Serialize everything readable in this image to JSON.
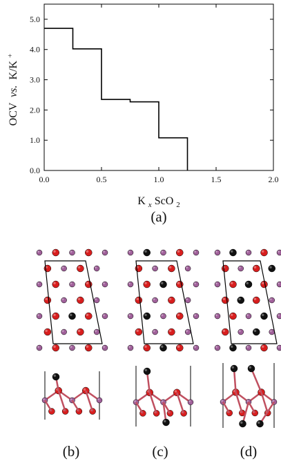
{
  "chart_data": {
    "type": "line",
    "step": true,
    "x": [
      0.0,
      0.25,
      0.5,
      0.75,
      1.0,
      1.25
    ],
    "y": [
      4.7,
      4.02,
      2.35,
      2.27,
      1.08,
      0.0
    ],
    "xlim": [
      0.0,
      2.0
    ],
    "ylim": [
      0.0,
      5.5
    ],
    "xticks": [
      "0.0",
      "0.5",
      "1.0",
      "1.5",
      "2.0"
    ],
    "yticks": [
      "0.0",
      "1.0",
      "2.0",
      "3.0",
      "4.0",
      "5.0"
    ],
    "xlabel": {
      "base": "K",
      "sub1": "x",
      "mid": "ScO",
      "sub2": "2"
    },
    "ylabel": {
      "prefix": "OCV",
      "italic": "vs.",
      "suffix": "K/K",
      "sup": "+"
    },
    "series_color": "#000000",
    "grid": false
  },
  "panels": {
    "a": "(a)",
    "b": "(b)",
    "c": "(c)",
    "d": "(d)"
  },
  "colors": {
    "oxygen": "#d81e1e",
    "scandium": "#a0609a",
    "potassium": "#111111",
    "bond": "#c05060"
  }
}
